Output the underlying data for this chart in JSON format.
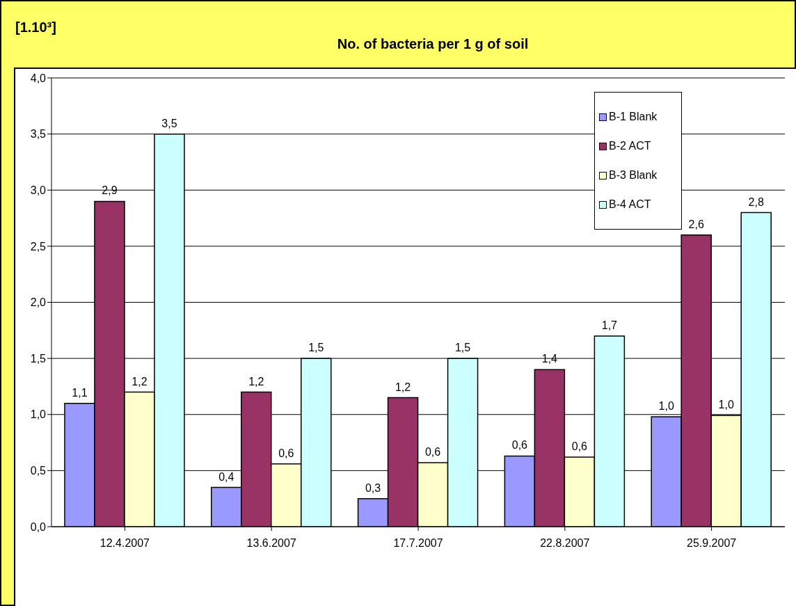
{
  "chart_data": {
    "type": "bar",
    "title": "No. of bacteria per 1 g of soil",
    "ylabel": "[1.10³]",
    "categories": [
      "12.4.2007",
      "13.6.2007",
      "17.7.2007",
      "22.8.2007",
      "25.9.2007"
    ],
    "series": [
      {
        "name": "B-1 Blank",
        "color": "#9999ff",
        "values": [
          1.1,
          0.35,
          0.25,
          0.63,
          0.98
        ],
        "value_labels": [
          "1,1",
          "0,4",
          "0,3",
          "0,6",
          "1,0"
        ]
      },
      {
        "name": "B-2 ACT",
        "color": "#993366",
        "values": [
          2.9,
          1.2,
          1.15,
          1.4,
          2.6
        ],
        "value_labels": [
          "2,9",
          "1,2",
          "1,2",
          "1,4",
          "2,6"
        ]
      },
      {
        "name": "B-3 Blank",
        "color": "#ffffcc",
        "values": [
          1.2,
          0.56,
          0.57,
          0.62,
          0.99
        ],
        "value_labels": [
          "1,2",
          "0,6",
          "0,6",
          "0,6",
          "1,0"
        ]
      },
      {
        "name": "B-4 ACT",
        "color": "#ccffff",
        "values": [
          3.5,
          1.5,
          1.5,
          1.7,
          2.8
        ],
        "value_labels": [
          "3,5",
          "1,5",
          "1,5",
          "1,7",
          "2,8"
        ]
      }
    ],
    "ylim": [
      0,
      4
    ],
    "yticks": [
      {
        "value": 0,
        "label": "0,0"
      },
      {
        "value": 0.5,
        "label": "0,5"
      },
      {
        "value": 1,
        "label": "1,0"
      },
      {
        "value": 1.5,
        "label": "1,5"
      },
      {
        "value": 2,
        "label": "2,0"
      },
      {
        "value": 2.5,
        "label": "2,5"
      },
      {
        "value": 3,
        "label": "3,0"
      },
      {
        "value": 3.5,
        "label": "3,5"
      },
      {
        "value": 4,
        "label": "4,0"
      }
    ],
    "grid": "y",
    "legend": "top right"
  }
}
